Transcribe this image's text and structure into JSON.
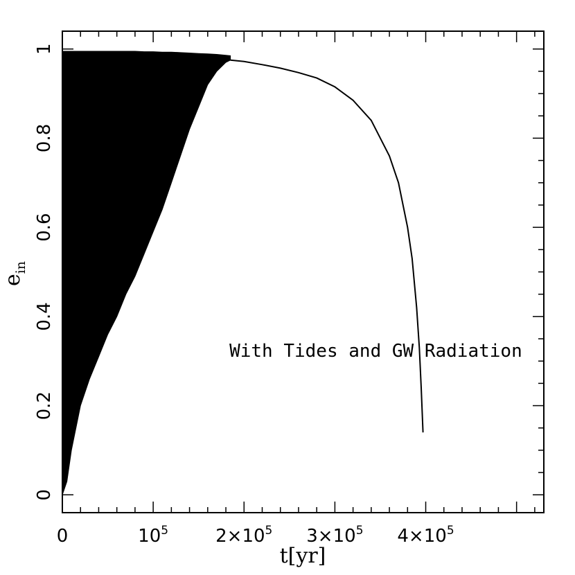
{
  "chart_data": {
    "type": "line",
    "title": "",
    "xlabel": "t[yr]",
    "ylabel": "e_in",
    "ylabel_main": "e",
    "ylabel_sub": "in",
    "xlim": [
      0,
      530000
    ],
    "ylim": [
      -0.04,
      1.04
    ],
    "grid": false,
    "legend": "none",
    "annotation": {
      "text": "With Tides and GW Radiation",
      "x": 345000,
      "y": 0.31
    },
    "x_ticks": [
      {
        "value": 0,
        "label": "0"
      },
      {
        "value": 100000,
        "label": "10",
        "exp": "5"
      },
      {
        "value": 200000,
        "label": "2×10",
        "exp": "5"
      },
      {
        "value": 300000,
        "label": "3×10",
        "exp": "5"
      },
      {
        "value": 400000,
        "label": "4×10",
        "exp": "5"
      }
    ],
    "y_ticks": [
      {
        "value": 0,
        "label": "0"
      },
      {
        "value": 0.2,
        "label": "0.2"
      },
      {
        "value": 0.4,
        "label": "0.4"
      },
      {
        "value": 0.6,
        "label": "0.6"
      },
      {
        "value": 0.8,
        "label": "0.8"
      },
      {
        "value": 1.0,
        "label": "1"
      }
    ],
    "series": [
      {
        "style": "oscillation-band",
        "color": "#000000",
        "x": [
          0,
          5000,
          10000,
          20000,
          30000,
          40000,
          50000,
          60000,
          70000,
          80000,
          90000,
          100000,
          110000,
          120000,
          130000,
          140000,
          150000,
          160000,
          170000,
          180000,
          185000
        ],
        "upper": [
          0.995,
          0.995,
          0.995,
          0.995,
          0.995,
          0.995,
          0.995,
          0.995,
          0.995,
          0.995,
          0.994,
          0.994,
          0.993,
          0.993,
          0.992,
          0.991,
          0.99,
          0.989,
          0.988,
          0.986,
          0.985
        ],
        "lower": [
          0.0,
          0.03,
          0.1,
          0.2,
          0.26,
          0.31,
          0.36,
          0.4,
          0.45,
          0.49,
          0.54,
          0.59,
          0.64,
          0.7,
          0.76,
          0.82,
          0.87,
          0.92,
          0.95,
          0.97,
          0.975
        ]
      },
      {
        "style": "line",
        "color": "#000000",
        "x": [
          185000,
          200000,
          220000,
          240000,
          260000,
          280000,
          300000,
          320000,
          340000,
          360000,
          370000,
          380000,
          385000,
          390000,
          393000,
          395000,
          396000,
          397000
        ],
        "y": [
          0.975,
          0.972,
          0.965,
          0.957,
          0.947,
          0.935,
          0.915,
          0.885,
          0.84,
          0.76,
          0.7,
          0.6,
          0.53,
          0.42,
          0.33,
          0.24,
          0.19,
          0.14
        ]
      }
    ]
  }
}
